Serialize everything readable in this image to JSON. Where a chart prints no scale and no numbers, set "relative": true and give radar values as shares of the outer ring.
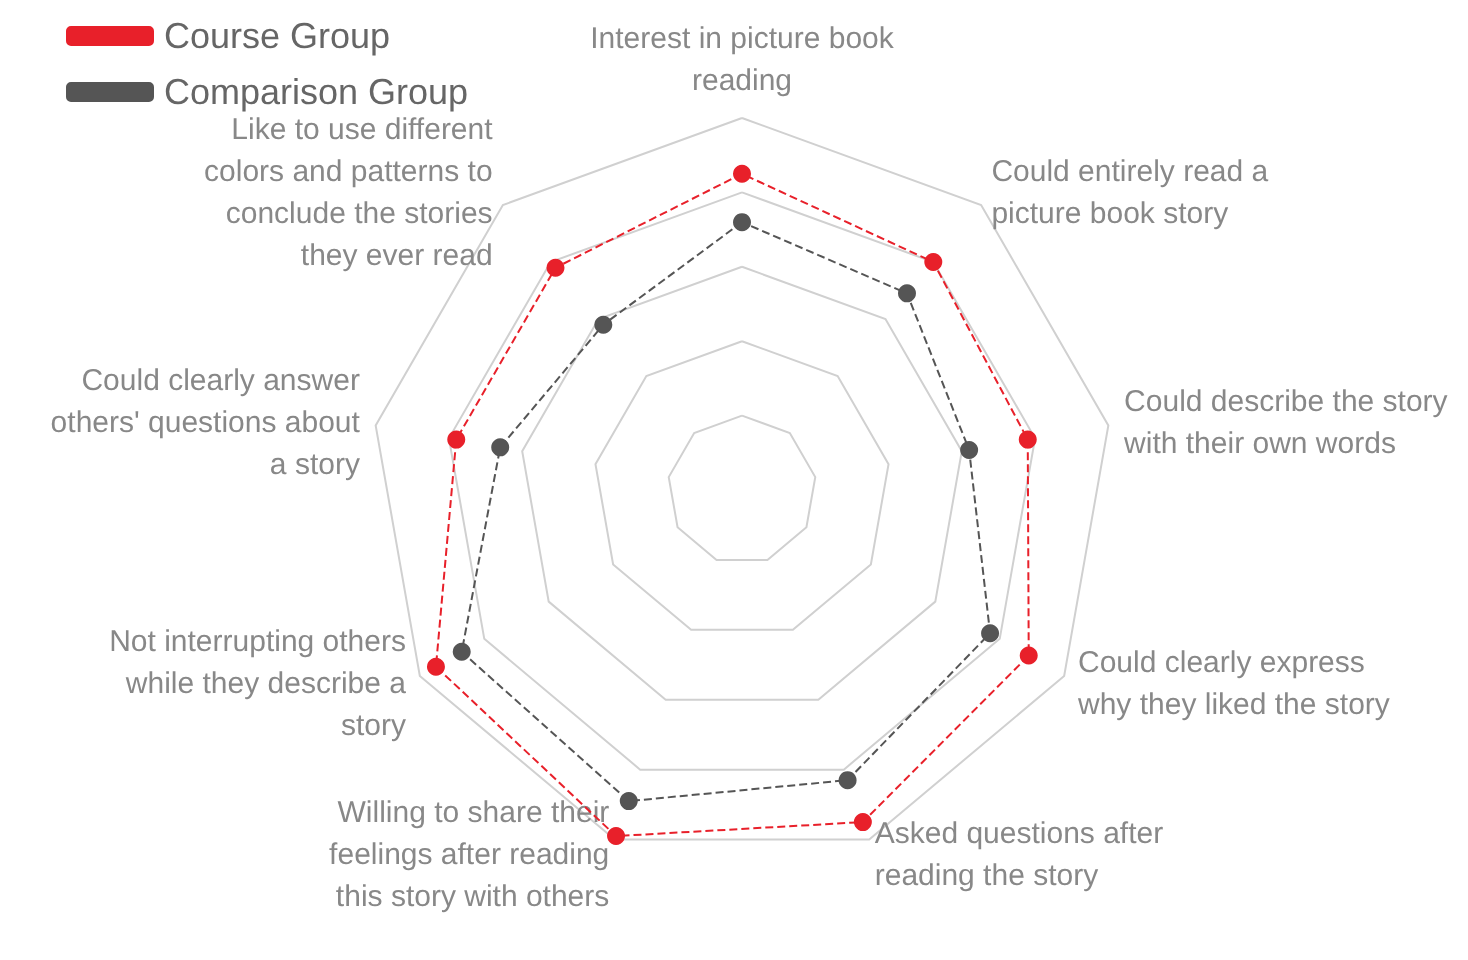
{
  "chart_data": {
    "type": "radar",
    "relative": true,
    "categories": [
      "Interest in picture book reading",
      "Could entirely read a picture book story",
      "Could describe the story with their own words",
      "Could clearly express why they liked the story",
      "Asked questions after reading the story",
      "Willing to share their feelings after reading this story with others",
      "Not interrupting others while they describe a story",
      "Could clearly answer others' questions about a story",
      "Like to use different colors and patterns to conclude the stories they ever read"
    ],
    "series": [
      {
        "name": "Course Group",
        "color": "#e8202a",
        "values": [
          0.85,
          0.8,
          0.78,
          0.89,
          0.95,
          0.99,
          0.95,
          0.78,
          0.78
        ]
      },
      {
        "name": "Comparison Group",
        "color": "#555555",
        "values": [
          0.72,
          0.69,
          0.62,
          0.77,
          0.83,
          0.89,
          0.87,
          0.66,
          0.58
        ]
      }
    ],
    "grid": true,
    "legend": "top left",
    "marker": "circle",
    "line_style": "dashed"
  }
}
